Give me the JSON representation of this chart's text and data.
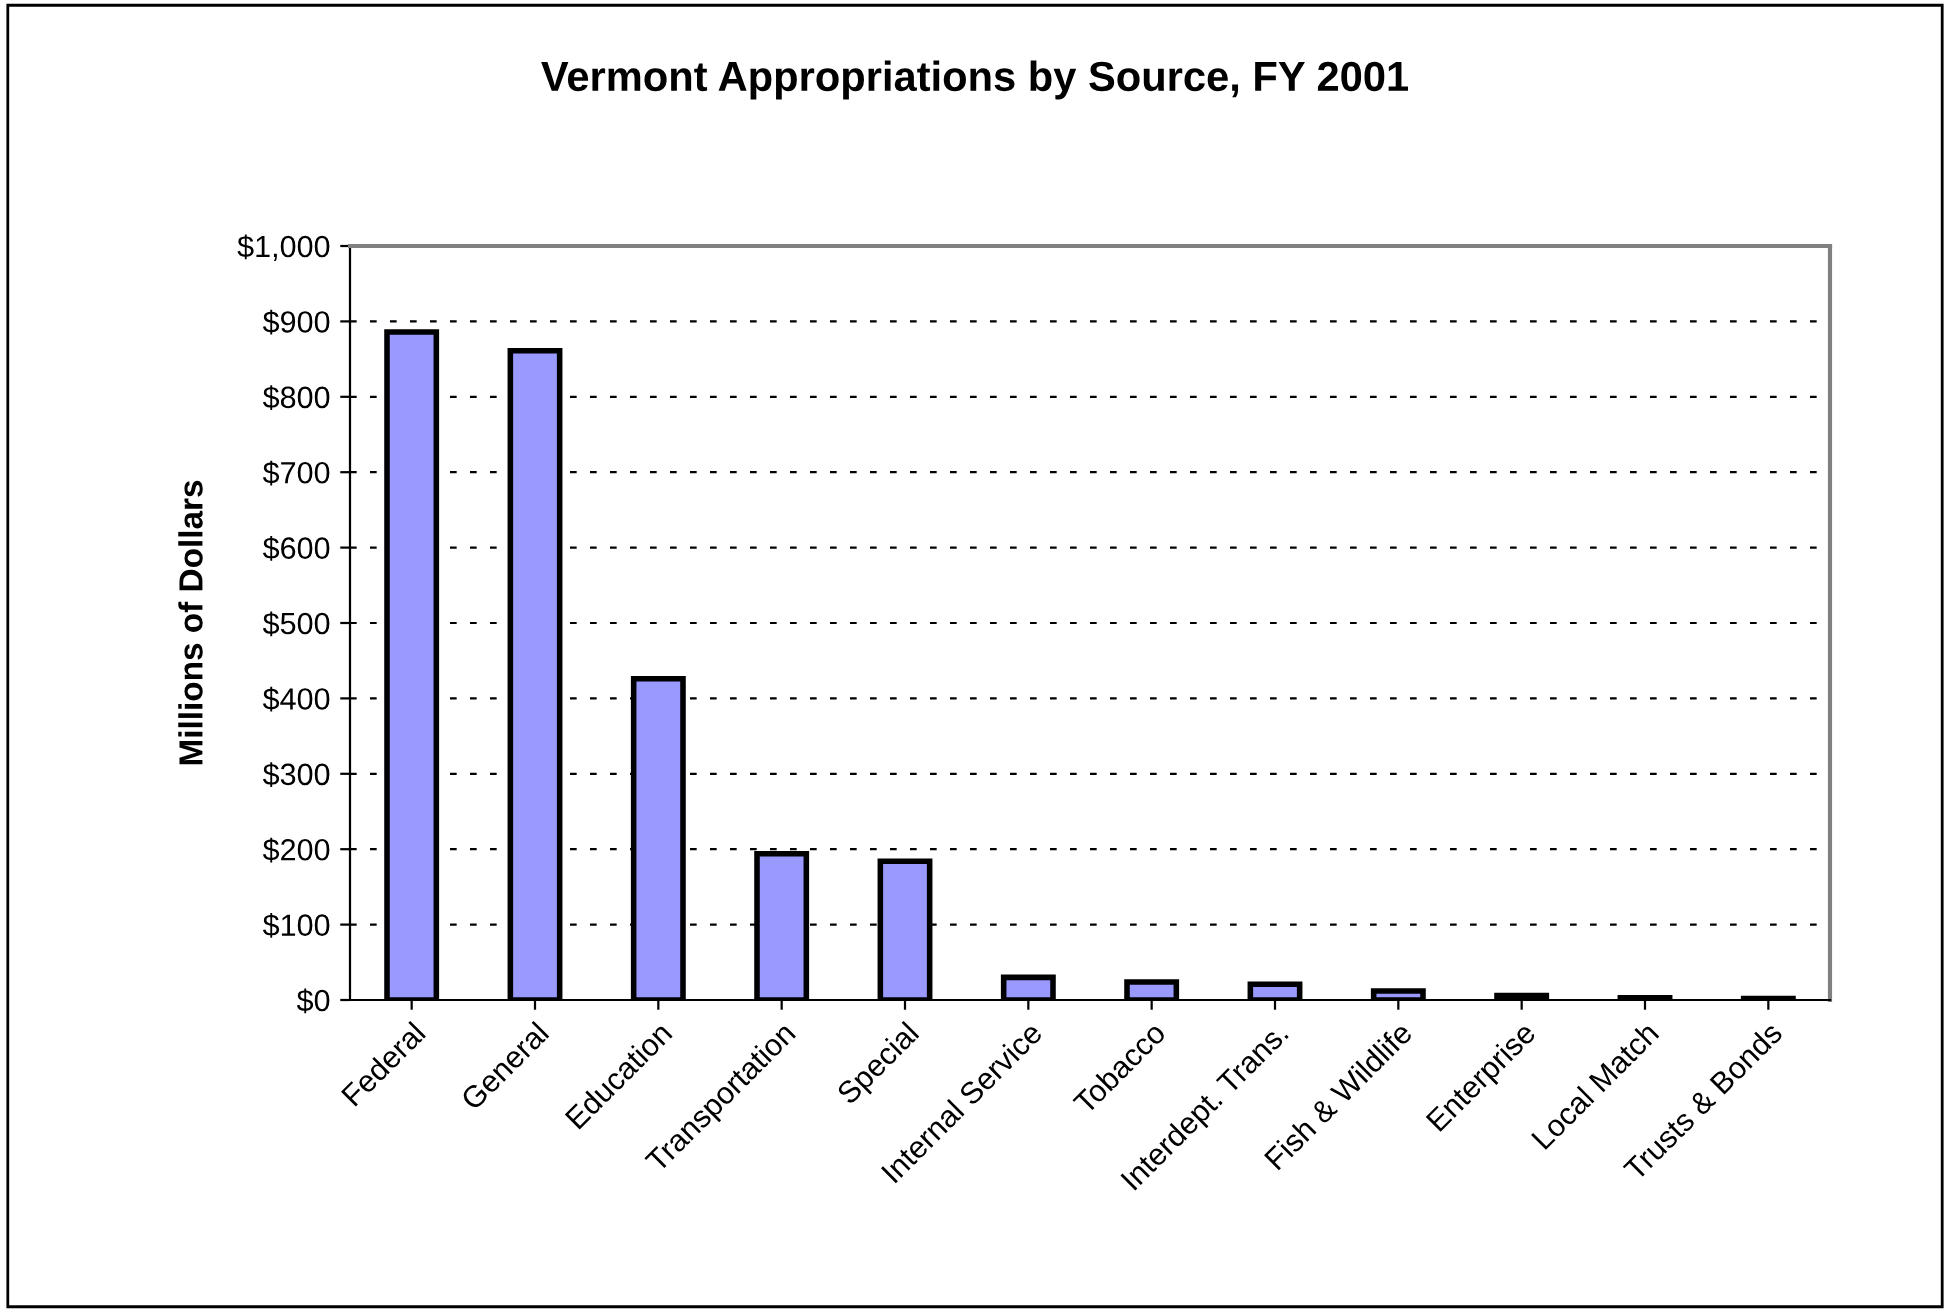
{
  "chart_data": {
    "type": "bar",
    "title": "Vermont Appropriations by Source, FY 2001",
    "ylabel": "Millions of Dollars",
    "categories": [
      "Federal",
      "General",
      "Education",
      "Transportation",
      "Special",
      "Internal Service",
      "Tobacco",
      "Interdept. Trans.",
      "Fish & Wildlife",
      "Enterprise",
      "Local Match",
      "Trusts & Bonds"
    ],
    "values": [
      886,
      861,
      426,
      194,
      184,
      30,
      24,
      21,
      12,
      6,
      3,
      2
    ],
    "color": "#9999ff",
    "ylim": [
      0,
      1000
    ],
    "yticks": [
      {
        "value": 0,
        "label": "$0"
      },
      {
        "value": 100,
        "label": "$100"
      },
      {
        "value": 200,
        "label": "$200"
      },
      {
        "value": 300,
        "label": "$300"
      },
      {
        "value": 400,
        "label": "$400"
      },
      {
        "value": 500,
        "label": "$500"
      },
      {
        "value": 600,
        "label": "$600"
      },
      {
        "value": 700,
        "label": "$700"
      },
      {
        "value": 800,
        "label": "$800"
      },
      {
        "value": 900,
        "label": "$900"
      },
      {
        "value": 1000,
        "label": "$1,000"
      }
    ],
    "grid": "y",
    "line_style": "dashed"
  }
}
